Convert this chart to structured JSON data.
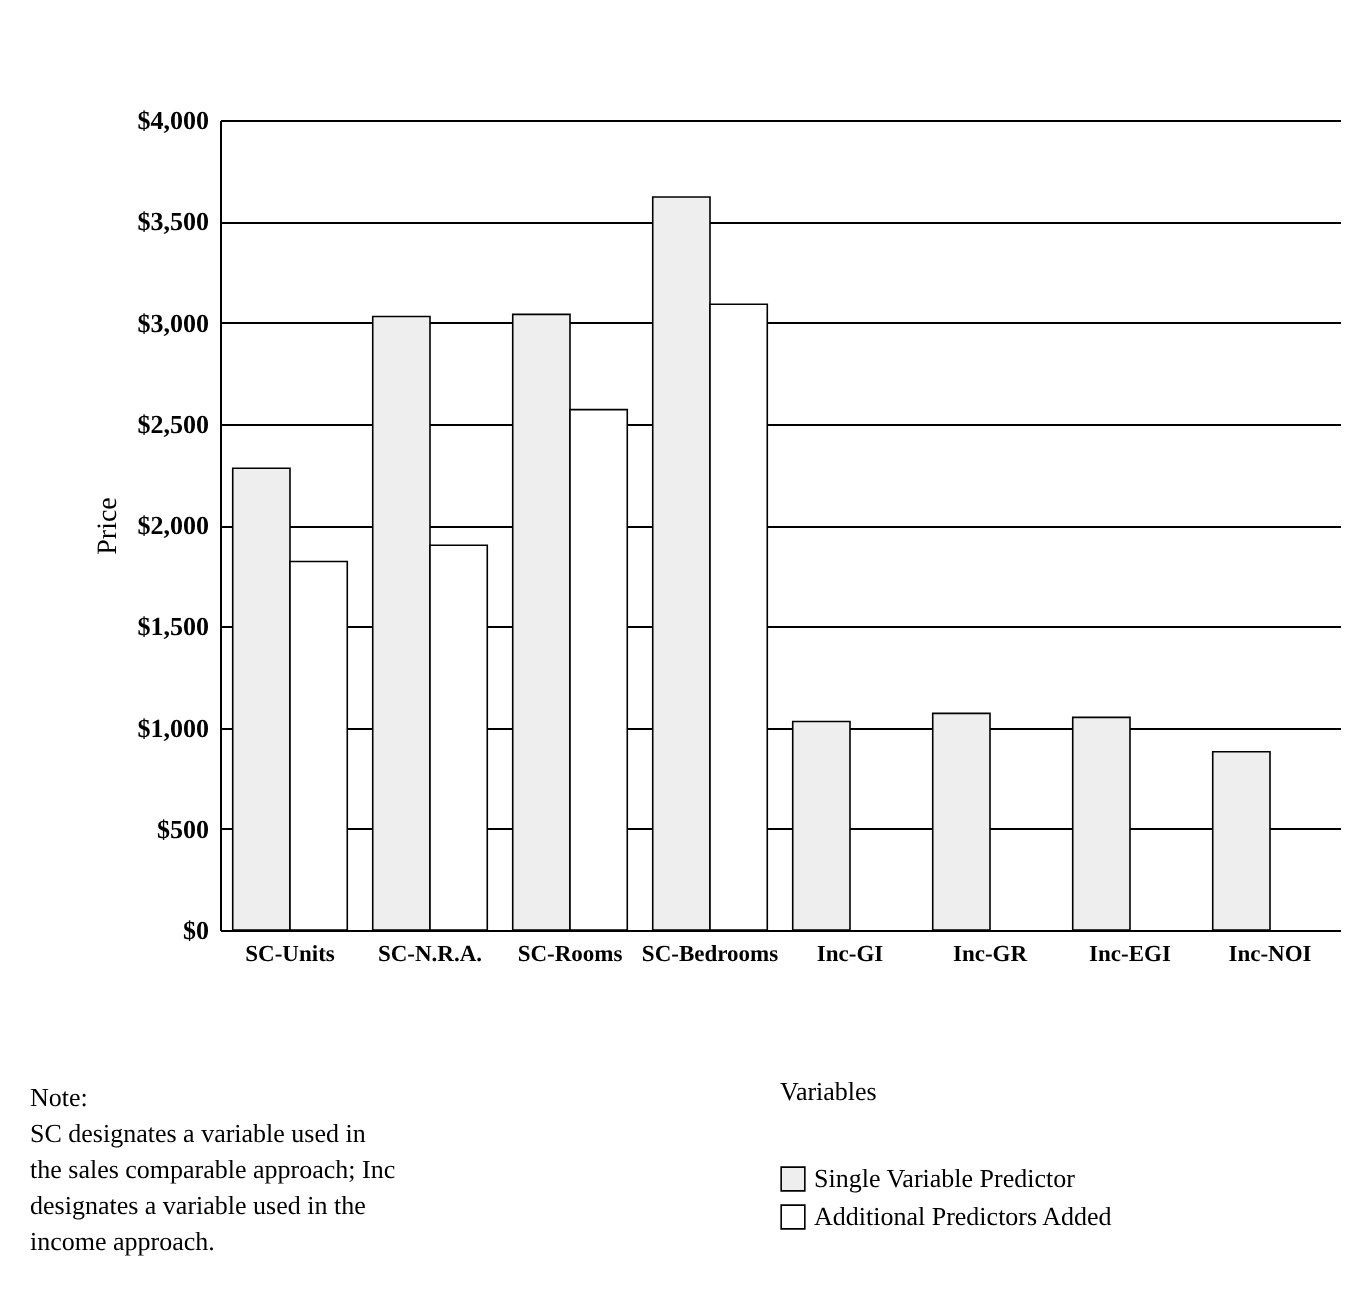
{
  "chart_data": {
    "type": "bar",
    "ylabel": "Price",
    "xlabel": "Variables",
    "categories": [
      "SC-Units",
      "SC-N.R.A.",
      "SC-Rooms",
      "SC-Bedrooms",
      "Inc-GI",
      "Inc-GR",
      "Inc-EGI",
      "Inc-NOI"
    ],
    "series": [
      {
        "name": "Single Variable Predictor",
        "color": "#eeeeee",
        "values": [
          2280,
          3030,
          3040,
          3620,
          1030,
          1070,
          1050,
          880
        ]
      },
      {
        "name": "Additional Predictors Added",
        "color": "#ffffff",
        "values": [
          1820,
          1900,
          2570,
          3090,
          null,
          null,
          null,
          null
        ]
      }
    ],
    "ylim": [
      0,
      4000
    ],
    "yticks": [
      {
        "value": 0,
        "label": "$0"
      },
      {
        "value": 500,
        "label": "$500"
      },
      {
        "value": 1000,
        "label": "$1,000"
      },
      {
        "value": 1500,
        "label": "$1,500"
      },
      {
        "value": 2000,
        "label": "$2,000"
      },
      {
        "value": 2500,
        "label": "$2,500"
      },
      {
        "value": 3000,
        "label": "$3,000"
      },
      {
        "value": 3500,
        "label": "$3,500"
      },
      {
        "value": 4000,
        "label": "$4,000"
      }
    ],
    "grid": "y",
    "legend": "bottom",
    "annotations": [
      "Note:",
      "SC designates a variable used in the sales comparable approach; Inc designates a variable used in the income approach."
    ]
  }
}
